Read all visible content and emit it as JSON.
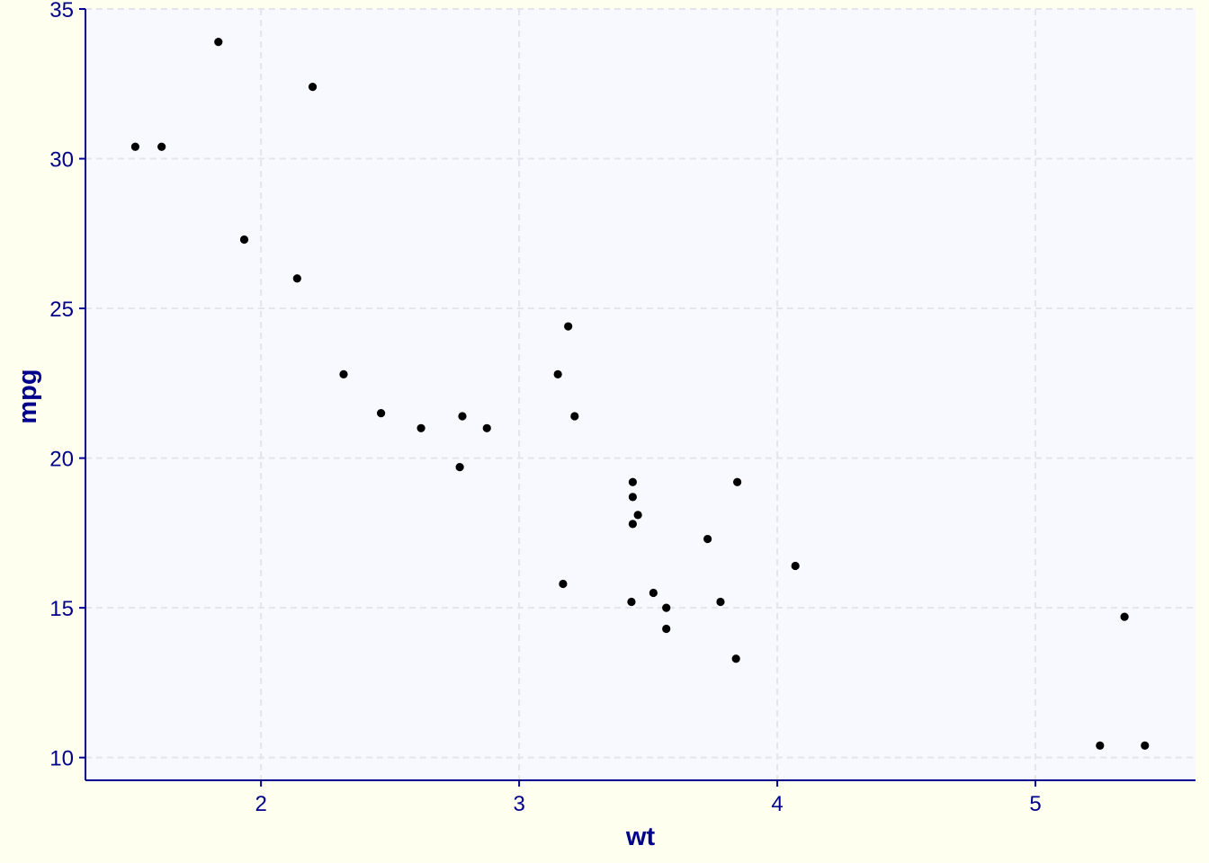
{
  "chart_data": {
    "type": "scatter",
    "title": "",
    "xlabel": "wt",
    "ylabel": "mpg",
    "xlim": [
      1.32,
      5.62
    ],
    "ylim": [
      9.24,
      35.0
    ],
    "x_ticks": [
      2,
      3,
      4,
      5
    ],
    "y_ticks": [
      10,
      15,
      20,
      25,
      30,
      35
    ],
    "x_tick_labels": [
      "2",
      "3",
      "4",
      "5"
    ],
    "y_tick_labels": [
      "10",
      "15",
      "20",
      "25",
      "30",
      "35"
    ],
    "grid": true,
    "legend": "none",
    "colors": {
      "background": "#fffff0",
      "panel": "#f8f8ff",
      "grid": "#e4e4ec",
      "axis": "#00008b",
      "text": "#00008b",
      "point": "#000000"
    },
    "points": [
      {
        "x": 2.62,
        "y": 21.0
      },
      {
        "x": 2.875,
        "y": 21.0
      },
      {
        "x": 2.32,
        "y": 22.8
      },
      {
        "x": 3.215,
        "y": 21.4
      },
      {
        "x": 3.44,
        "y": 18.7
      },
      {
        "x": 3.46,
        "y": 18.1
      },
      {
        "x": 3.57,
        "y": 14.3
      },
      {
        "x": 3.19,
        "y": 24.4
      },
      {
        "x": 3.15,
        "y": 22.8
      },
      {
        "x": 3.44,
        "y": 19.2
      },
      {
        "x": 3.44,
        "y": 17.8
      },
      {
        "x": 4.07,
        "y": 16.4
      },
      {
        "x": 3.73,
        "y": 17.3
      },
      {
        "x": 3.78,
        "y": 15.2
      },
      {
        "x": 5.25,
        "y": 10.4
      },
      {
        "x": 5.424,
        "y": 10.4
      },
      {
        "x": 5.345,
        "y": 14.7
      },
      {
        "x": 2.2,
        "y": 32.4
      },
      {
        "x": 1.615,
        "y": 30.4
      },
      {
        "x": 1.835,
        "y": 33.9
      },
      {
        "x": 2.465,
        "y": 21.5
      },
      {
        "x": 3.52,
        "y": 15.5
      },
      {
        "x": 3.435,
        "y": 15.2
      },
      {
        "x": 3.84,
        "y": 13.3
      },
      {
        "x": 3.845,
        "y": 19.2
      },
      {
        "x": 1.935,
        "y": 27.3
      },
      {
        "x": 2.14,
        "y": 26.0
      },
      {
        "x": 1.513,
        "y": 30.4
      },
      {
        "x": 3.17,
        "y": 15.8
      },
      {
        "x": 2.77,
        "y": 19.7
      },
      {
        "x": 3.57,
        "y": 15.0
      },
      {
        "x": 2.78,
        "y": 21.4
      }
    ]
  }
}
